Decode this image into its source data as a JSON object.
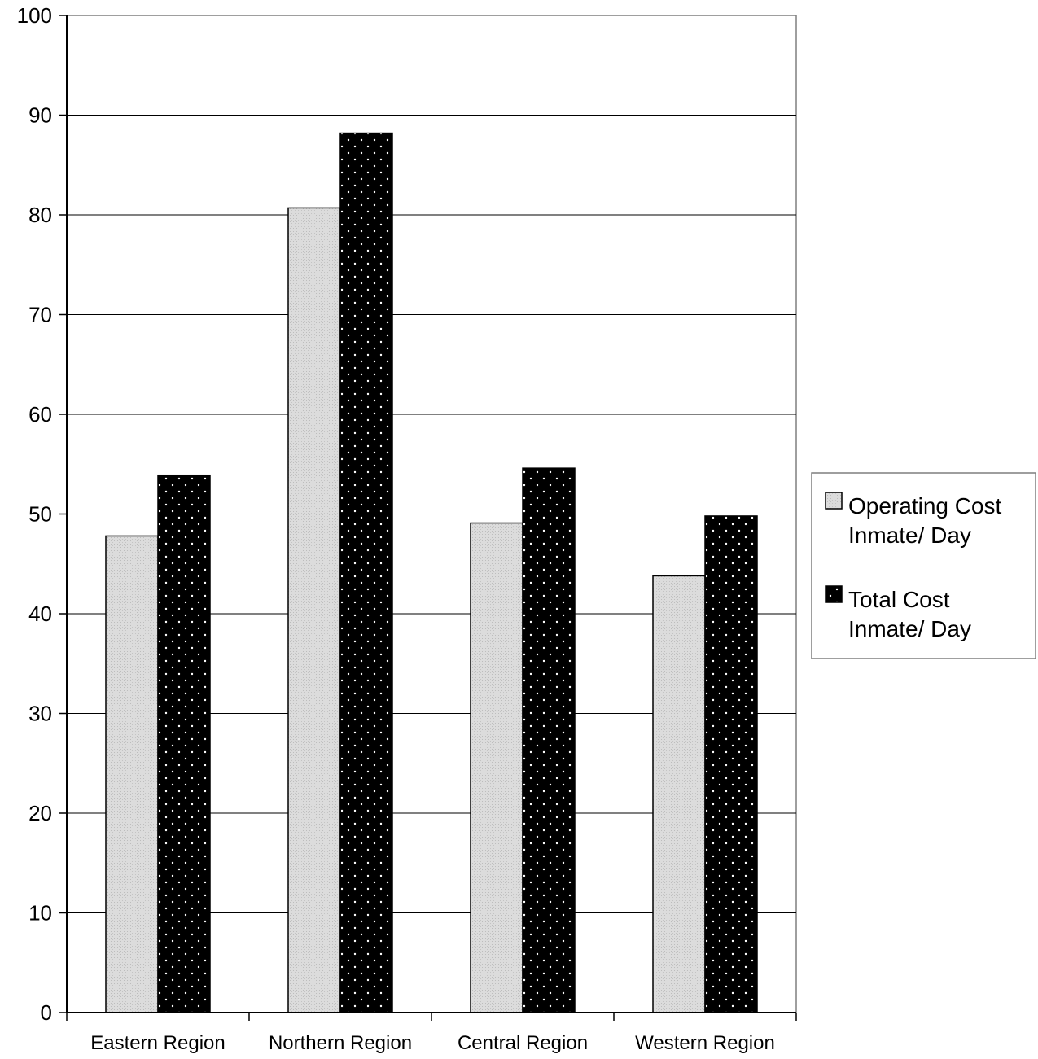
{
  "chart_data": {
    "type": "bar",
    "title": "",
    "xlabel": "",
    "ylabel": "",
    "categories": [
      "Eastern Region",
      "Northern Region",
      "Central Region",
      "Western Region"
    ],
    "series": [
      {
        "name": "Operating Cost Inmate/ Day",
        "legend_lines": [
          "Operating Cost",
          "Inmate/ Day"
        ],
        "values": [
          47.8,
          80.7,
          49.1,
          43.8
        ],
        "color": "#d9d9d9",
        "pattern": "light-stipple"
      },
      {
        "name": "Total Cost Inmate/ Day",
        "legend_lines": [
          "Total Cost",
          "Inmate/ Day"
        ],
        "values": [
          53.9,
          88.2,
          54.6,
          49.8
        ],
        "color": "#000000",
        "pattern": "white-dots"
      }
    ],
    "ylim": [
      0,
      100
    ],
    "yticks": [
      0,
      10,
      20,
      30,
      40,
      50,
      60,
      70,
      80,
      90,
      100
    ],
    "grid": true,
    "legend_position": "right"
  }
}
